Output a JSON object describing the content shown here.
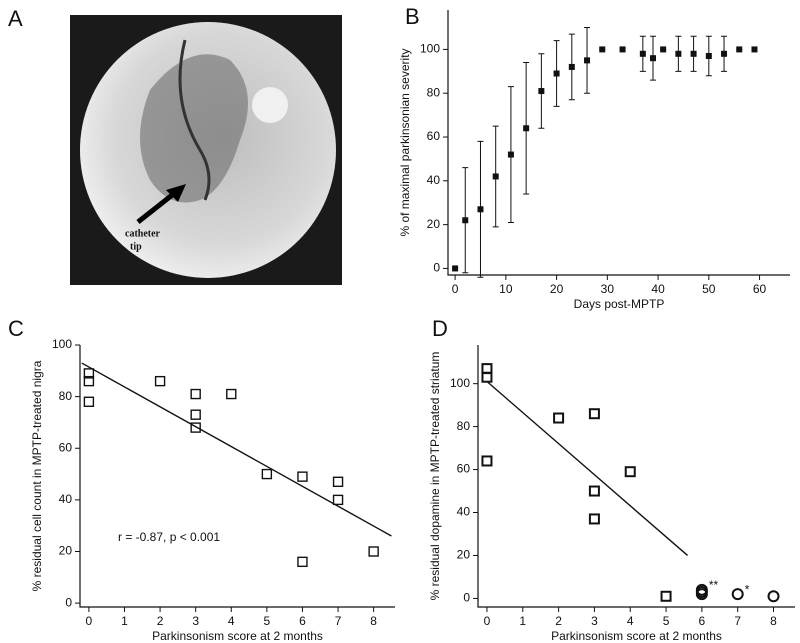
{
  "panel_labels": [
    "A",
    "B",
    "C",
    "D"
  ],
  "image_annotation": [
    "catheter",
    "tip"
  ],
  "chart_data": [
    {
      "type": "scatter",
      "xlabel": "Days post-MPTP",
      "ylabel": "% of maximal parkinsonian severity",
      "xlim": [
        -1.4,
        66
      ],
      "ylim": [
        -3,
        118
      ],
      "xticks": [
        0,
        10,
        20,
        30,
        40,
        50,
        60
      ],
      "yticks": [
        0,
        20,
        40,
        60,
        80,
        100
      ],
      "series": [
        {
          "marker": "filled-square",
          "color": "#111111",
          "x": [
            0,
            2,
            5,
            8,
            11,
            14,
            17,
            20,
            23,
            26,
            29,
            33,
            37,
            39,
            41,
            44,
            47,
            50,
            53,
            56,
            59
          ],
          "values": [
            0,
            22,
            27,
            42,
            52,
            64,
            81,
            89,
            92,
            95,
            100,
            100,
            98,
            96,
            100,
            98,
            98,
            97,
            98,
            100,
            100
          ],
          "errors": [
            0,
            24,
            31,
            23,
            31,
            30,
            17,
            15,
            15,
            15,
            0,
            0,
            8,
            10,
            0,
            8,
            8,
            9,
            8,
            0,
            0
          ]
        }
      ]
    },
    {
      "type": "scatter",
      "xlabel": "Parkinsonism score at 2 months",
      "ylabel": "% residual cell count in MPTP-treated nigra",
      "xlim": [
        -0.25,
        8.6
      ],
      "ylim": [
        -1.5,
        100
      ],
      "xticks": [
        0,
        1,
        2,
        3,
        4,
        5,
        6,
        7,
        8
      ],
      "yticks": [
        0,
        20,
        40,
        60,
        80,
        100
      ],
      "annotations": [
        "r = -0.87, p < 0.001"
      ],
      "series": [
        {
          "marker": "square",
          "color": "#111111",
          "x": [
            0,
            0,
            0,
            2,
            3,
            3,
            3,
            4,
            5,
            6,
            6,
            7,
            7,
            8
          ],
          "values": [
            89,
            86,
            78,
            86,
            81,
            73,
            68,
            81,
            50,
            49,
            16,
            47,
            40,
            20
          ]
        }
      ],
      "fit": {
        "x": [
          -0.2,
          8.5
        ],
        "values": [
          93,
          26
        ]
      }
    },
    {
      "type": "scatter",
      "xlabel": "Parkinsonism score at 2 months",
      "ylabel": "% residual dopamine in MPTP-treated striatum",
      "xlim": [
        -0.25,
        8.6
      ],
      "ylim": [
        -4,
        118
      ],
      "xticks": [
        0,
        1,
        2,
        3,
        4,
        5,
        6,
        7,
        8
      ],
      "yticks": [
        0,
        20,
        40,
        60,
        80,
        100
      ],
      "annotations": [
        "**",
        "*"
      ],
      "series": [
        {
          "marker": "square",
          "color": "#111111",
          "x": [
            0,
            0,
            0,
            2,
            3,
            3,
            3,
            4,
            5
          ],
          "values": [
            107,
            103,
            64,
            84,
            86,
            50,
            37,
            59,
            1
          ]
        },
        {
          "marker": "circle",
          "color": "#111111",
          "x": [
            6,
            6,
            6,
            7,
            8
          ],
          "values": [
            4,
            3,
            2,
            2,
            1
          ]
        }
      ],
      "fit": {
        "x": [
          0,
          5.6
        ],
        "values": [
          101,
          20
        ]
      }
    }
  ]
}
